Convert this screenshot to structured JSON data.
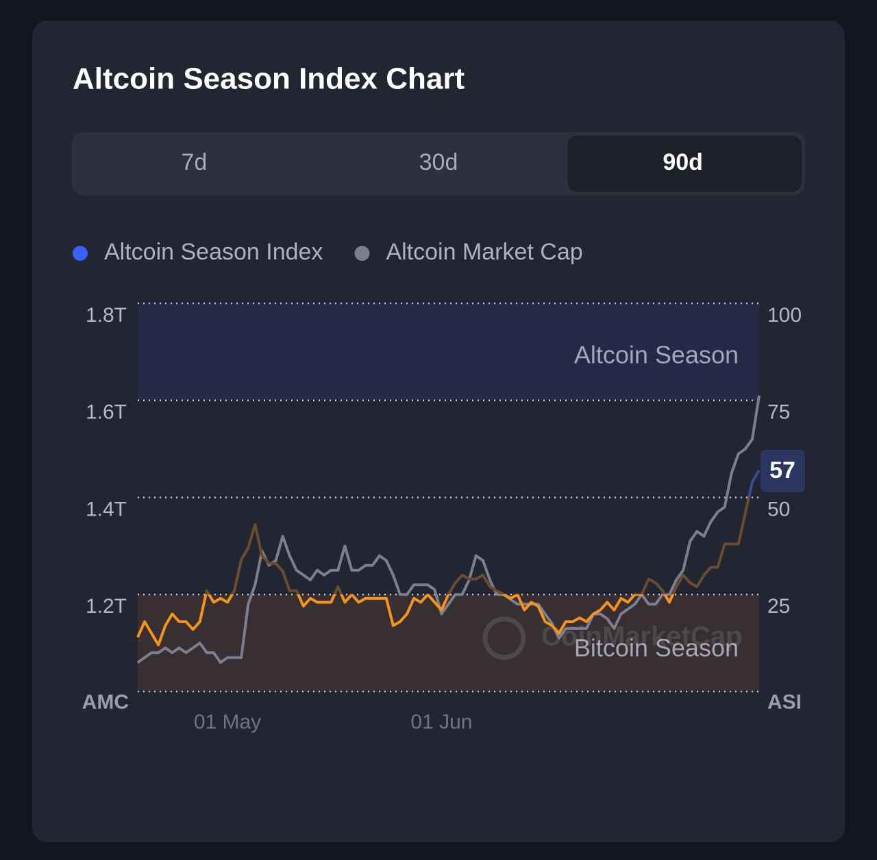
{
  "tabs": [
    "7d",
    "30d",
    "90d"
  ],
  "active_tab": 2,
  "chart_data": {
    "type": "line",
    "title": "Altcoin Season Index Chart",
    "categories": [
      null,
      null,
      null,
      null,
      null,
      null,
      null,
      null,
      null,
      null,
      null,
      null,
      null,
      "01 May",
      null,
      null,
      null,
      null,
      null,
      null,
      null,
      null,
      null,
      null,
      null,
      null,
      null,
      null,
      null,
      null,
      null,
      null,
      null,
      null,
      null,
      null,
      null,
      null,
      null,
      null,
      null,
      null,
      null,
      null,
      "01 Jun",
      null,
      null,
      null,
      null,
      null,
      null,
      null,
      null,
      null,
      null,
      null,
      null,
      null,
      null,
      null,
      null,
      null,
      null,
      null,
      null,
      null,
      null,
      null,
      null,
      null,
      null,
      null,
      null,
      null,
      null,
      null,
      null,
      null,
      null,
      null,
      null,
      null,
      null,
      null,
      null,
      null,
      null,
      null,
      null,
      null,
      null
    ],
    "ylabel": "AMC",
    "y2label": "ASI",
    "ylim": [
      1.0,
      1.8
    ],
    "yticks": [
      {
        "value": 1.2,
        "label": "1.2T"
      },
      {
        "value": 1.4,
        "label": "1.4T"
      },
      {
        "value": 1.6,
        "label": "1.6T"
      },
      {
        "value": 1.8,
        "label": "1.8T"
      }
    ],
    "y2lim": [
      0,
      100
    ],
    "y2ticks": [
      25,
      50,
      75,
      100
    ],
    "grid": true,
    "bands": [
      {
        "name": "Altcoin Season",
        "from": 75,
        "to": 100,
        "color": "#232a45",
        "axis": "y2"
      },
      {
        "name": "Bitcoin Season",
        "from": 0,
        "to": 25,
        "color": "#372f31",
        "axis": "y2"
      }
    ],
    "watermark": "CoinMarketCap",
    "series": [
      {
        "name": "Altcoin Season Index",
        "color": "#3861fb",
        "axis": "y2",
        "zones": [
          {
            "to": 25,
            "color": "#f7931a"
          },
          {
            "to": 50,
            "color": "#6b4c2e"
          },
          {
            "to": 100,
            "color": "#3a4c96"
          }
        ],
        "values": [
          14,
          18,
          15,
          12,
          17,
          20,
          18,
          18,
          16,
          18,
          26,
          23,
          24,
          23,
          26,
          34,
          37,
          43,
          35,
          33,
          33,
          31,
          26,
          26,
          22,
          24,
          23,
          23,
          23,
          27,
          23,
          25,
          23,
          24,
          24,
          24,
          24,
          17,
          18,
          20,
          24,
          23,
          25,
          23,
          21,
          25,
          28,
          30,
          29,
          29,
          30,
          27,
          26,
          25,
          24,
          25,
          21,
          23,
          22,
          18,
          17,
          15,
          18,
          18,
          19,
          18,
          20,
          21,
          23,
          21,
          24,
          23,
          25,
          25,
          29,
          28,
          26,
          23,
          27,
          30,
          28,
          27,
          30,
          32,
          32,
          38,
          38,
          38,
          46,
          54,
          57
        ]
      },
      {
        "name": "Altcoin Market Cap",
        "color": "#7b7f92",
        "values": [
          1.06,
          1.07,
          1.08,
          1.08,
          1.09,
          1.08,
          1.09,
          1.08,
          1.09,
          1.1,
          1.08,
          1.08,
          1.06,
          1.07,
          1.07,
          1.07,
          1.18,
          1.22,
          1.29,
          1.26,
          1.27,
          1.32,
          1.28,
          1.25,
          1.24,
          1.23,
          1.25,
          1.24,
          1.25,
          1.25,
          1.3,
          1.25,
          1.25,
          1.26,
          1.26,
          1.28,
          1.27,
          1.24,
          1.2,
          1.2,
          1.22,
          1.22,
          1.22,
          1.21,
          1.16,
          1.18,
          1.2,
          1.2,
          1.23,
          1.28,
          1.27,
          1.23,
          1.2,
          1.2,
          1.19,
          1.18,
          1.18,
          1.18,
          1.18,
          1.16,
          1.14,
          1.11,
          1.13,
          1.13,
          1.13,
          1.13,
          1.16,
          1.16,
          1.15,
          1.13,
          1.16,
          1.17,
          1.18,
          1.2,
          1.18,
          1.18,
          1.2,
          1.2,
          1.23,
          1.25,
          1.31,
          1.33,
          1.32,
          1.35,
          1.37,
          1.38,
          1.45,
          1.49,
          1.5,
          1.52,
          1.61
        ]
      }
    ]
  }
}
